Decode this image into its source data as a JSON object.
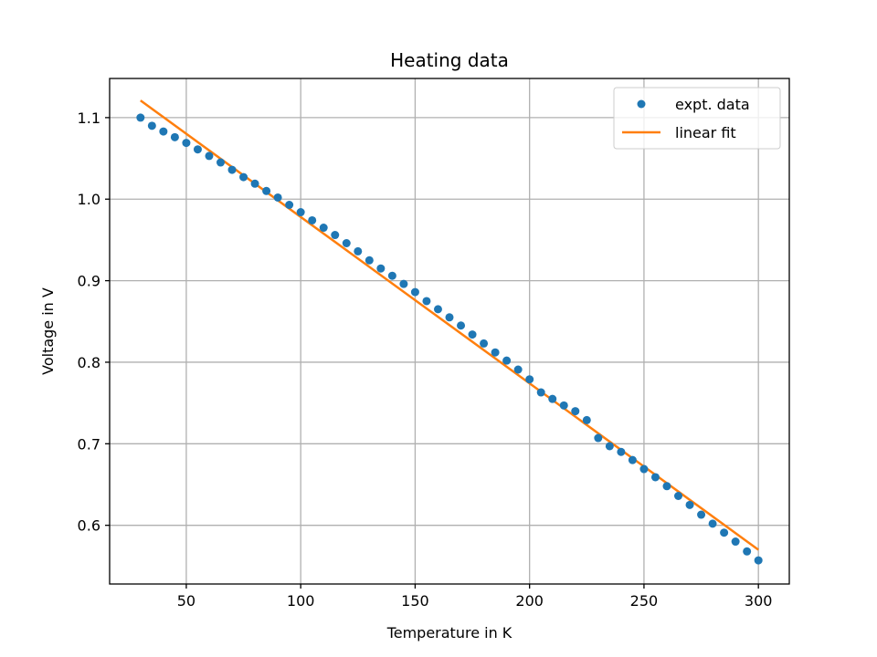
{
  "chart_data": {
    "type": "scatter",
    "title": "Heating data",
    "xlabel": "Temperature in K",
    "ylabel": "Voltage in V",
    "xlim": [
      16.5,
      313.5
    ],
    "ylim": [
      0.528,
      1.148
    ],
    "xticks": [
      50,
      100,
      150,
      200,
      250,
      300
    ],
    "yticks": [
      0.6,
      0.7,
      0.8,
      0.9,
      1.0,
      1.1
    ],
    "xtick_labels": [
      "50",
      "100",
      "150",
      "200",
      "250",
      "300"
    ],
    "ytick_labels": [
      "0.6",
      "0.7",
      "0.8",
      "0.9",
      "1.0",
      "1.1"
    ],
    "grid": true,
    "legend_position": "top-right",
    "series": [
      {
        "name": "expt. data",
        "kind": "scatter",
        "color": "#1f77b4",
        "x": [
          30,
          35,
          40,
          45,
          50,
          55,
          60,
          65,
          70,
          75,
          80,
          85,
          90,
          95,
          100,
          105,
          110,
          115,
          120,
          125,
          130,
          135,
          140,
          145,
          150,
          155,
          160,
          165,
          170,
          175,
          180,
          185,
          190,
          195,
          200,
          205,
          210,
          215,
          220,
          225,
          230,
          235,
          240,
          245,
          250,
          255,
          260,
          265,
          270,
          275,
          280,
          285,
          290,
          295,
          300
        ],
        "y": [
          1.1,
          1.09,
          1.083,
          1.076,
          1.069,
          1.061,
          1.053,
          1.045,
          1.036,
          1.027,
          1.019,
          1.01,
          1.002,
          0.993,
          0.984,
          0.974,
          0.965,
          0.956,
          0.946,
          0.936,
          0.925,
          0.915,
          0.906,
          0.896,
          0.886,
          0.875,
          0.865,
          0.855,
          0.845,
          0.834,
          0.823,
          0.812,
          0.802,
          0.791,
          0.779,
          0.763,
          0.755,
          0.747,
          0.74,
          0.729,
          0.707,
          0.697,
          0.69,
          0.68,
          0.669,
          0.659,
          0.648,
          0.636,
          0.625,
          0.613,
          0.602,
          0.591,
          0.58,
          0.568,
          0.557
        ]
      },
      {
        "name": "linear fit",
        "kind": "line",
        "color": "#ff7f0e",
        "x": [
          30,
          300
        ],
        "y": [
          1.121,
          0.57
        ]
      }
    ]
  }
}
